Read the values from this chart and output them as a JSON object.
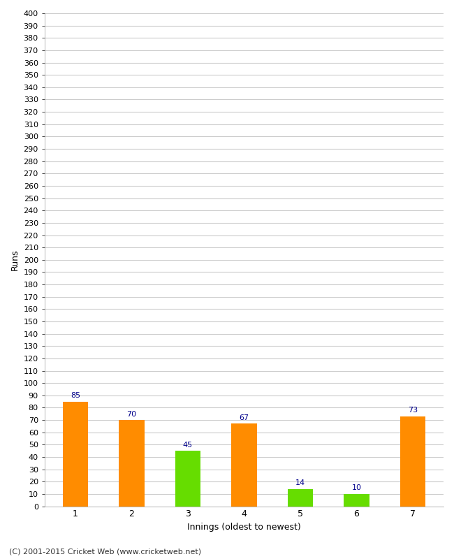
{
  "xlabel": "Innings (oldest to newest)",
  "ylabel": "Runs",
  "categories": [
    "1",
    "2",
    "3",
    "4",
    "5",
    "6",
    "7"
  ],
  "values": [
    85,
    70,
    45,
    67,
    14,
    10,
    73
  ],
  "bar_colors": [
    "#ff8c00",
    "#ff8c00",
    "#66dd00",
    "#ff8c00",
    "#66dd00",
    "#66dd00",
    "#ff8c00"
  ],
  "label_color": "#00008b",
  "label_fontsize": 8,
  "ytick_step": 10,
  "ymin": 0,
  "ymax": 400,
  "background_color": "#ffffff",
  "plot_bg_color": "#ffffff",
  "grid_color": "#cccccc",
  "footer": "(C) 2001-2015 Cricket Web (www.cricketweb.net)",
  "bar_width": 0.45
}
